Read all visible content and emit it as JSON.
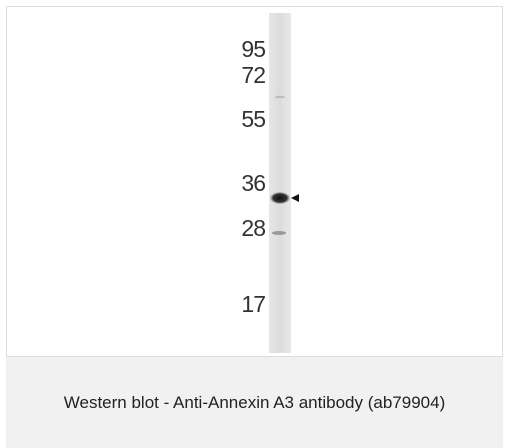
{
  "blot": {
    "markers": [
      {
        "label": "95"
      },
      {
        "label": "72"
      },
      {
        "label": "55"
      },
      {
        "label": "36"
      },
      {
        "label": "28"
      },
      {
        "label": "17"
      }
    ]
  },
  "caption": "Western blot - Anti-Annexin A3 antibody (ab79904)"
}
